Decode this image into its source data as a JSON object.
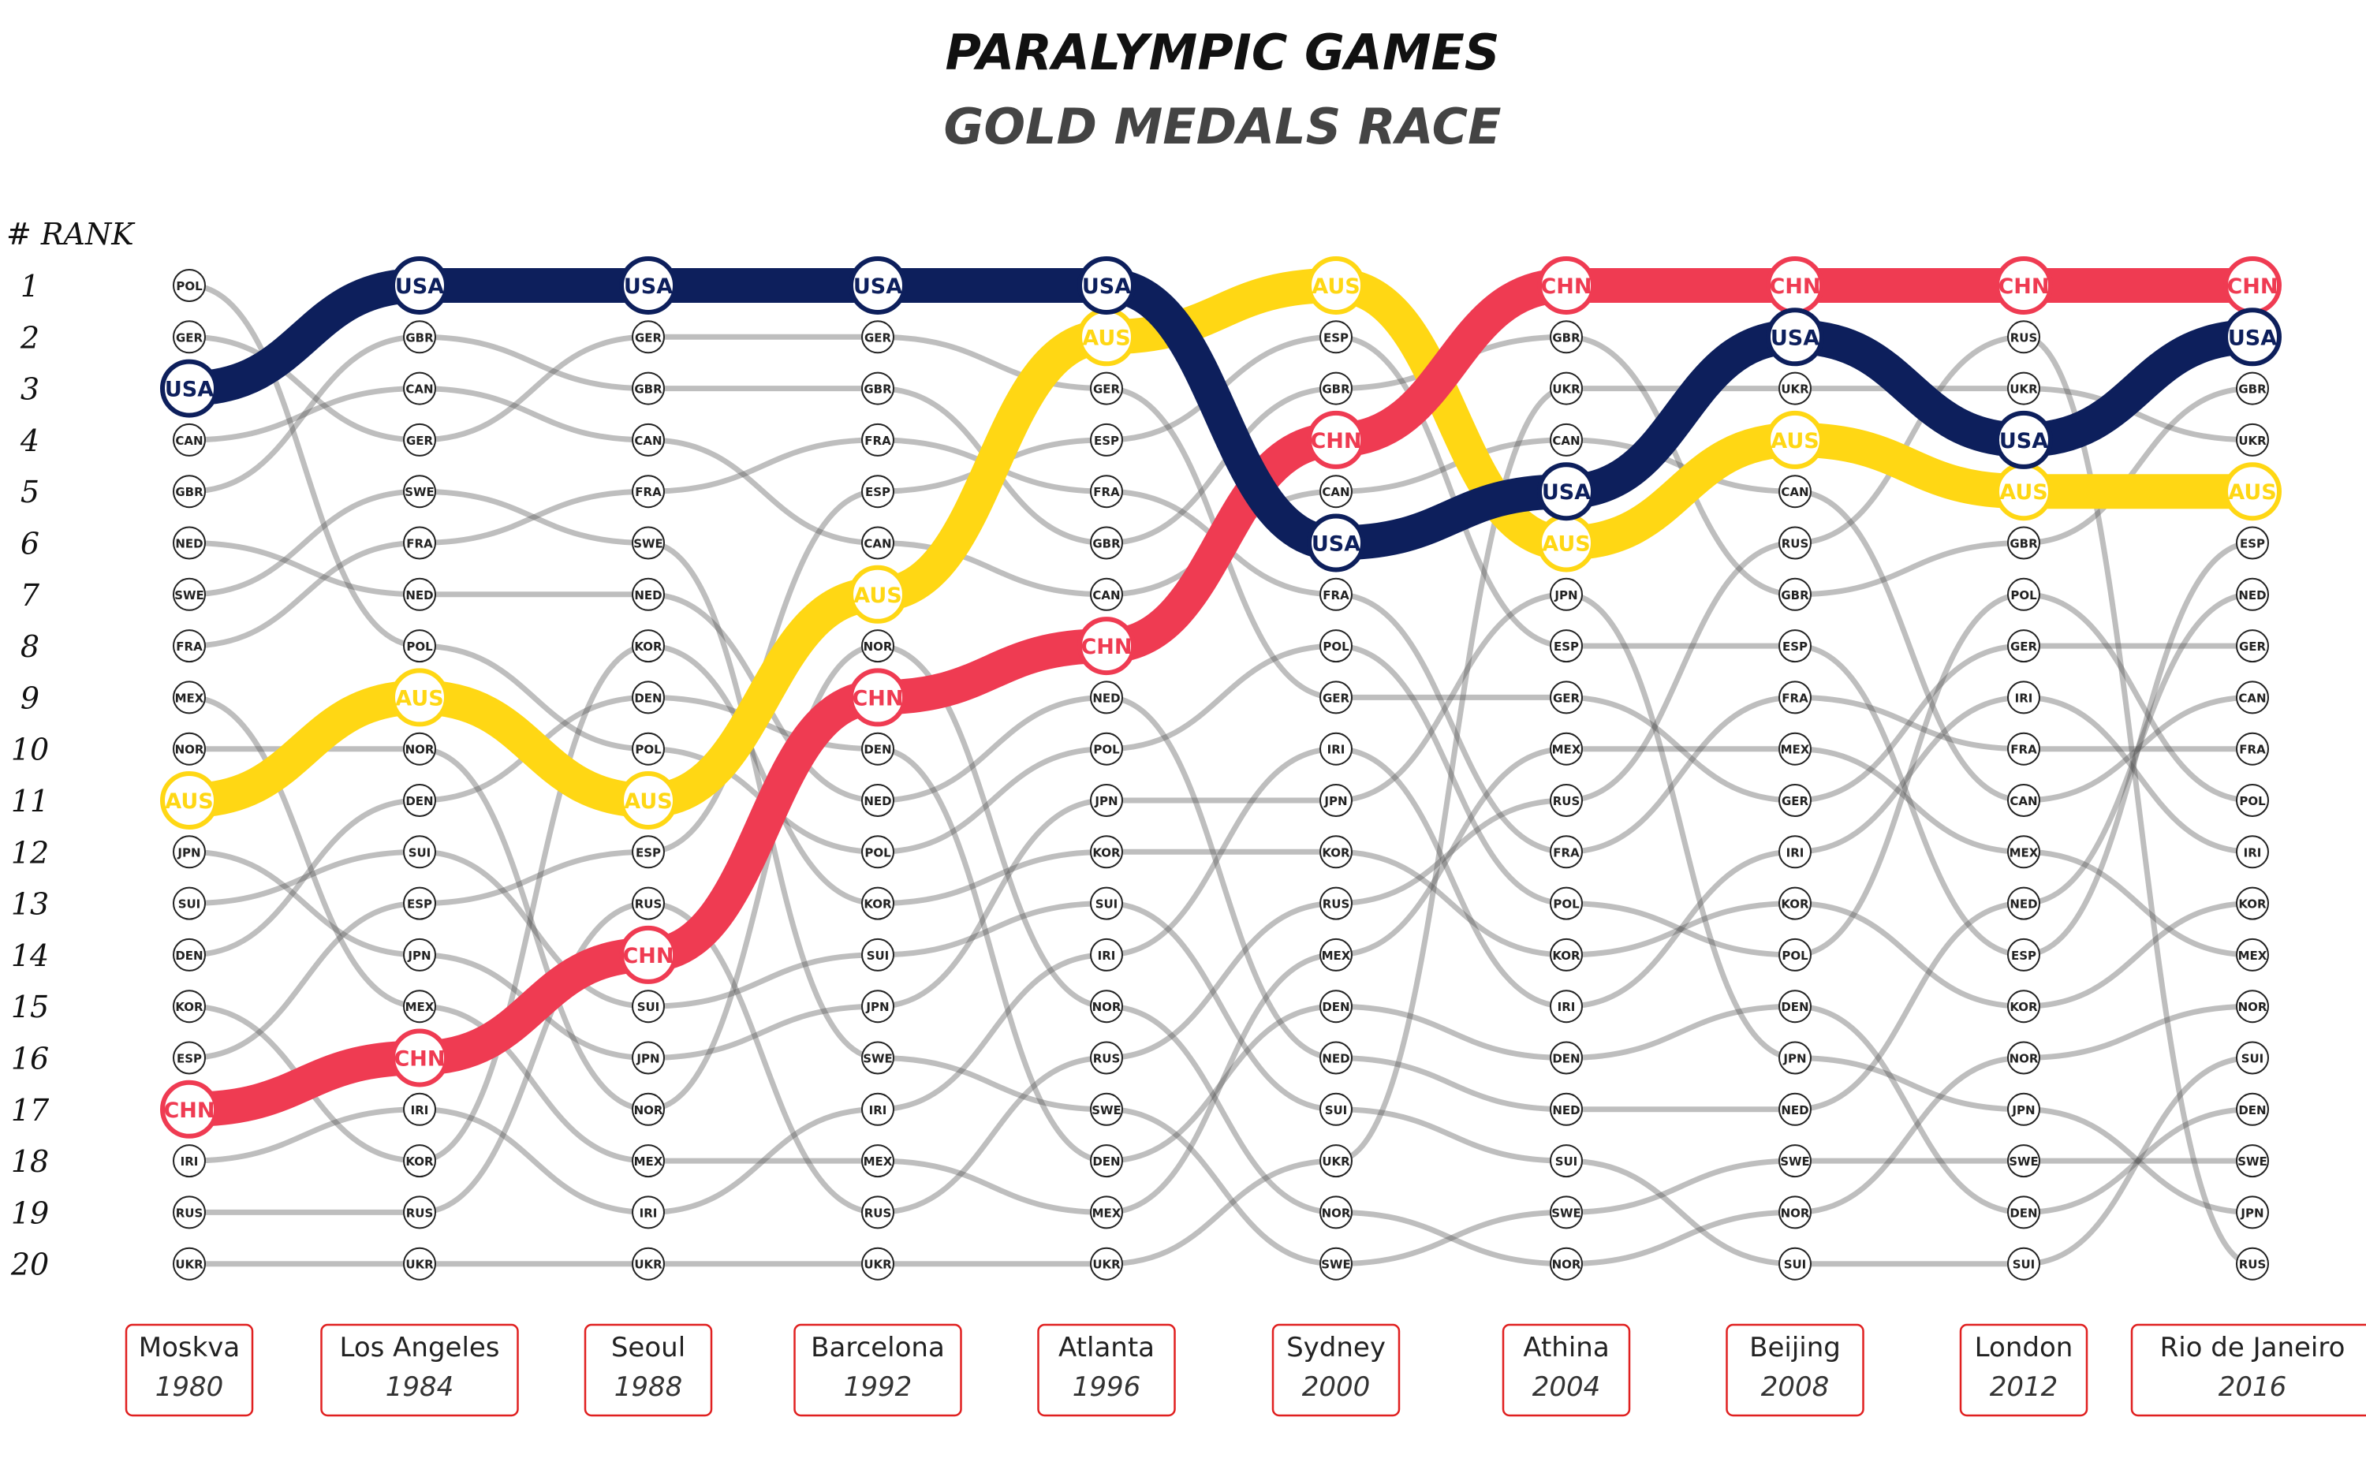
{
  "title": "PARALYMPIC GAMES",
  "subtitle": "GOLD MEDALS RACE",
  "rank_header": "# RANK",
  "colors": {
    "USA": "#0d1f5c",
    "CHN": "#ef3b52",
    "AUS": "#ffd714",
    "other_line": "#b5b5b5",
    "frame": "#e02020"
  },
  "chart_data": {
    "type": "line",
    "title": "PARALYMPIC GAMES",
    "subtitle": "GOLD MEDALS RACE",
    "ylabel": "# RANK",
    "yticks": [
      1,
      2,
      3,
      4,
      5,
      6,
      7,
      8,
      9,
      10,
      11,
      12,
      13,
      14,
      15,
      16,
      17,
      18,
      19,
      20
    ],
    "ylim": [
      1,
      20
    ],
    "y_inverted": true,
    "games": [
      {
        "city": "Moskva",
        "year": "1980"
      },
      {
        "city": "Los Angeles",
        "year": "1984"
      },
      {
        "city": "Seoul",
        "year": "1988"
      },
      {
        "city": "Barcelona",
        "year": "1992"
      },
      {
        "city": "Atlanta",
        "year": "1996"
      },
      {
        "city": "Sydney",
        "year": "2000"
      },
      {
        "city": "Athina",
        "year": "2004"
      },
      {
        "city": "Beijing",
        "year": "2008"
      },
      {
        "city": "London",
        "year": "2012"
      },
      {
        "city": "Rio de Janeiro",
        "year": "2016"
      }
    ],
    "rankings": [
      [
        "POL",
        "GER",
        "USA",
        "CAN",
        "GBR",
        "NED",
        "SWE",
        "FRA",
        "MEX",
        "NOR",
        "AUS",
        "JPN",
        "SUI",
        "DEN",
        "KOR",
        "ESP",
        "CHN",
        "IRI",
        "RUS",
        "UKR"
      ],
      [
        "USA",
        "GBR",
        "CAN",
        "GER",
        "SWE",
        "FRA",
        "NED",
        "POL",
        "AUS",
        "NOR",
        "DEN",
        "SUI",
        "ESP",
        "JPN",
        "MEX",
        "CHN",
        "IRI",
        "KOR",
        "RUS",
        "UKR"
      ],
      [
        "USA",
        "GER",
        "GBR",
        "CAN",
        "FRA",
        "SWE",
        "NED",
        "KOR",
        "DEN",
        "POL",
        "AUS",
        "ESP",
        "RUS",
        "CHN",
        "SUI",
        "JPN",
        "NOR",
        "MEX",
        "IRI",
        "UKR"
      ],
      [
        "USA",
        "GER",
        "GBR",
        "FRA",
        "ESP",
        "CAN",
        "AUS",
        "NOR",
        "CHN",
        "DEN",
        "NED",
        "POL",
        "KOR",
        "SUI",
        "JPN",
        "SWE",
        "IRI",
        "MEX",
        "RUS",
        "UKR"
      ],
      [
        "USA",
        "AUS",
        "GER",
        "ESP",
        "FRA",
        "GBR",
        "CAN",
        "CHN",
        "NED",
        "POL",
        "JPN",
        "KOR",
        "SUI",
        "IRI",
        "NOR",
        "RUS",
        "SWE",
        "DEN",
        "MEX",
        "UKR"
      ],
      [
        "AUS",
        "ESP",
        "GBR",
        "CHN",
        "CAN",
        "USA",
        "FRA",
        "POL",
        "GER",
        "IRI",
        "JPN",
        "KOR",
        "RUS",
        "MEX",
        "DEN",
        "NED",
        "SUI",
        "UKR",
        "NOR",
        "SWE"
      ],
      [
        "CHN",
        "GBR",
        "UKR",
        "CAN",
        "USA",
        "AUS",
        "JPN",
        "ESP",
        "GER",
        "MEX",
        "RUS",
        "FRA",
        "POL",
        "KOR",
        "IRI",
        "DEN",
        "NED",
        "SUI",
        "SWE",
        "NOR"
      ],
      [
        "CHN",
        "USA",
        "UKR",
        "AUS",
        "CAN",
        "RUS",
        "GBR",
        "ESP",
        "FRA",
        "MEX",
        "GER",
        "IRI",
        "KOR",
        "POL",
        "DEN",
        "JPN",
        "NED",
        "SWE",
        "NOR",
        "SUI"
      ],
      [
        "CHN",
        "RUS",
        "UKR",
        "USA",
        "AUS",
        "GBR",
        "POL",
        "GER",
        "IRI",
        "FRA",
        "CAN",
        "MEX",
        "NED",
        "ESP",
        "KOR",
        "NOR",
        "JPN",
        "SWE",
        "DEN",
        "SUI"
      ],
      [
        "CHN",
        "USA",
        "GBR",
        "UKR",
        "AUS",
        "ESP",
        "NED",
        "GER",
        "CAN",
        "FRA",
        "POL",
        "IRI",
        "KOR",
        "MEX",
        "NOR",
        "SUI",
        "DEN",
        "SWE",
        "JPN",
        "RUS"
      ]
    ],
    "highlighted": [
      "USA",
      "CHN",
      "AUS"
    ]
  }
}
